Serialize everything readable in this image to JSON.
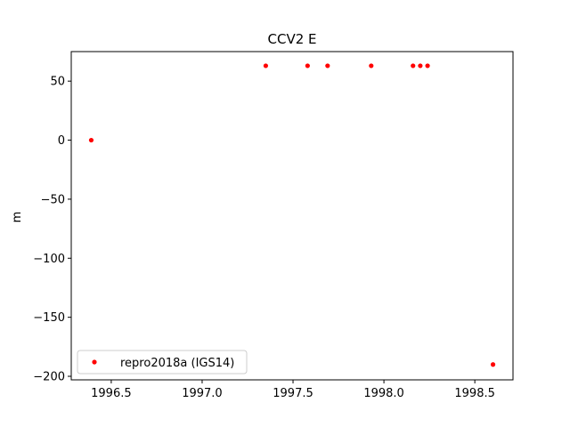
{
  "chart_data": {
    "type": "scatter",
    "title": "CCV2 E",
    "xlabel": "",
    "ylabel": "m",
    "xlim": [
      1996.28,
      1998.71
    ],
    "ylim": [
      -203,
      75
    ],
    "xticks": [
      1996.5,
      1997.0,
      1997.5,
      1998.0,
      1998.5
    ],
    "xtick_labels": [
      "1996.5",
      "1997.0",
      "1997.5",
      "1998.0",
      "1998.5"
    ],
    "yticks": [
      50,
      0,
      -50,
      -100,
      -150,
      -200
    ],
    "ytick_labels": [
      "50",
      "0",
      "−50",
      "−100",
      "−150",
      "−200"
    ],
    "grid": false,
    "legend_position": "lower-left",
    "series": [
      {
        "name": "repro2018a (IGS14)",
        "color": "#ff0000",
        "marker": "dot",
        "points": [
          {
            "x": 1996.39,
            "y": 0
          },
          {
            "x": 1997.35,
            "y": 63
          },
          {
            "x": 1997.58,
            "y": 63
          },
          {
            "x": 1997.69,
            "y": 63
          },
          {
            "x": 1997.93,
            "y": 63
          },
          {
            "x": 1998.16,
            "y": 63
          },
          {
            "x": 1998.2,
            "y": 63
          },
          {
            "x": 1998.24,
            "y": 63
          },
          {
            "x": 1998.6,
            "y": -190
          }
        ]
      }
    ]
  }
}
